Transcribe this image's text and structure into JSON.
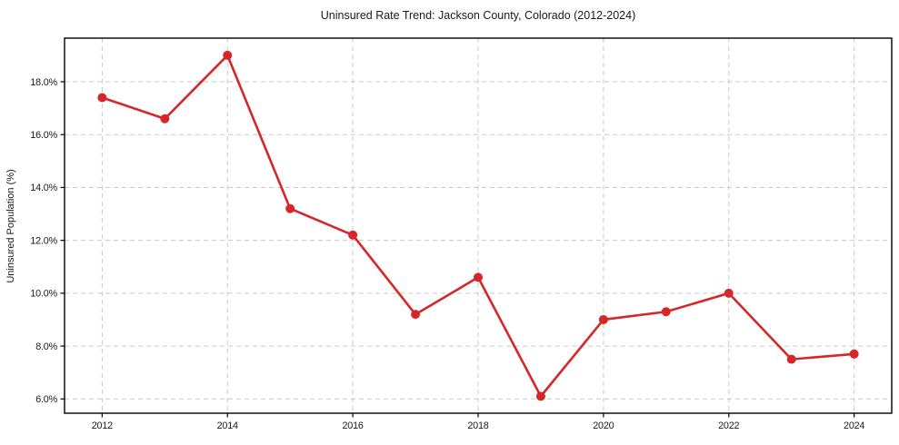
{
  "chart_data": {
    "type": "line",
    "title": "Uninsured Rate Trend: Jackson County, Colorado (2012-2024)",
    "xlabel": "",
    "ylabel": "Uninsured Population (%)",
    "x": [
      2012,
      2013,
      2014,
      2015,
      2016,
      2017,
      2018,
      2019,
      2020,
      2021,
      2022,
      2023,
      2024
    ],
    "series": [
      {
        "name": "Uninsured Rate",
        "color": "#d62728",
        "values": [
          17.4,
          16.6,
          19.0,
          13.2,
          12.2,
          9.2,
          10.6,
          6.1,
          9.0,
          9.3,
          10.0,
          7.5,
          7.7
        ]
      }
    ],
    "xlim": [
      2011.4,
      2024.6
    ],
    "ylim": [
      5.46,
      19.65
    ],
    "xticks": [
      2012,
      2014,
      2016,
      2018,
      2020,
      2022,
      2024
    ],
    "xtick_labels": [
      "2012",
      "2014",
      "2016",
      "2018",
      "2020",
      "2022",
      "2024"
    ],
    "yticks": [
      6,
      8,
      10,
      12,
      14,
      16,
      18
    ],
    "ytick_labels": [
      "6.0%",
      "8.0%",
      "10.0%",
      "12.0%",
      "14.0%",
      "16.0%",
      "18.0%"
    ],
    "grid": true,
    "grid_style": "dashed",
    "legend": "none",
    "colors": {
      "line": "#d62728",
      "marker": "#d62728",
      "grid": "#c9c9c9",
      "spine": "#000000",
      "text": "#1a1a1a",
      "background": "#ffffff"
    }
  }
}
